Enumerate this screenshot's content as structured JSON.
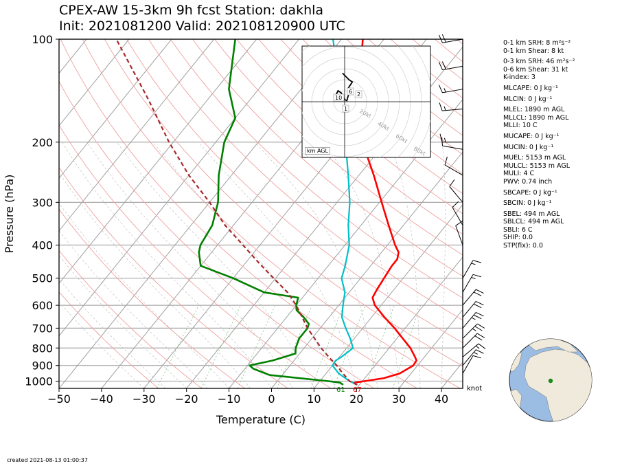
{
  "title": {
    "line1": "CPEX-AW 15-3km  9h fcst  Station: dakhla",
    "line2": "Init: 2021081200  Valid: 202108120900 UTC"
  },
  "chart_data": {
    "type": "skew-t",
    "xlabel": "Temperature (C)",
    "ylabel": "Pressure (hPa)",
    "xlim": [
      -50,
      45
    ],
    "ylim_pressure": [
      1050,
      100
    ],
    "x_ticks": [
      -50,
      -40,
      -30,
      -20,
      -10,
      0,
      10,
      20,
      30,
      40
    ],
    "y_ticks": [
      100,
      200,
      300,
      400,
      500,
      600,
      700,
      800,
      900,
      1000
    ],
    "surface_dewpoint_label": "61",
    "surface_temp_label": "67",
    "colors": {
      "temperature": "#ff0000",
      "dewpoint": "#008000",
      "virtual_temperature": "#00bfc8",
      "parcel": "#a52a2a",
      "isotherm": "#a0a0a0",
      "dry_adiabat": "#f0a0a0",
      "moist_adiabat": "#c0c0c0",
      "mixing_ratio": "#80c080"
    },
    "series": [
      {
        "key": "temperature",
        "points": [
          [
            1025,
            19.2
          ],
          [
            1010,
            18.5
          ],
          [
            1000,
            20.5
          ],
          [
            980,
            24.5
          ],
          [
            950,
            27.3
          ],
          [
            900,
            29
          ],
          [
            870,
            28.8
          ],
          [
            850,
            27.8
          ],
          [
            800,
            25
          ],
          [
            700,
            17.5
          ],
          [
            650,
            13
          ],
          [
            600,
            8.5
          ],
          [
            570,
            6.5
          ],
          [
            540,
            6
          ],
          [
            500,
            5.5
          ],
          [
            460,
            5
          ],
          [
            440,
            5
          ],
          [
            420,
            4
          ],
          [
            400,
            1.8
          ],
          [
            350,
            -3.5
          ],
          [
            300,
            -9.5
          ],
          [
            250,
            -16.5
          ],
          [
            200,
            -25.5
          ],
          [
            150,
            -34.5
          ],
          [
            100,
            -45
          ]
        ]
      },
      {
        "key": "dewpoint",
        "points": [
          [
            1025,
            16.2
          ],
          [
            1010,
            15
          ],
          [
            1000,
            12
          ],
          [
            960,
            -3
          ],
          [
            920,
            -8
          ],
          [
            900,
            -9.5
          ],
          [
            870,
            -5
          ],
          [
            830,
            -1
          ],
          [
            800,
            -2
          ],
          [
            750,
            -3
          ],
          [
            700,
            -3
          ],
          [
            680,
            -3.5
          ],
          [
            650,
            -6
          ],
          [
            620,
            -9
          ],
          [
            600,
            -10
          ],
          [
            570,
            -11
          ],
          [
            550,
            -20
          ],
          [
            500,
            -30
          ],
          [
            460,
            -40
          ],
          [
            420,
            -43
          ],
          [
            400,
            -44
          ],
          [
            350,
            -45
          ],
          [
            300,
            -48
          ],
          [
            250,
            -53
          ],
          [
            200,
            -58
          ],
          [
            170,
            -60
          ],
          [
            140,
            -67
          ],
          [
            100,
            -75
          ]
        ]
      },
      {
        "key": "virtual_temperature",
        "points": [
          [
            1025,
            19.5
          ],
          [
            1000,
            17
          ],
          [
            950,
            13
          ],
          [
            900,
            10
          ],
          [
            870,
            9.8
          ],
          [
            850,
            10.5
          ],
          [
            800,
            11.5
          ],
          [
            750,
            9
          ],
          [
            700,
            6
          ],
          [
            650,
            3
          ],
          [
            600,
            1
          ],
          [
            550,
            -1
          ],
          [
            500,
            -4.5
          ],
          [
            460,
            -6
          ],
          [
            400,
            -9
          ],
          [
            350,
            -13
          ],
          [
            300,
            -17
          ],
          [
            250,
            -22.5
          ],
          [
            200,
            -29.5
          ],
          [
            150,
            -39
          ],
          [
            120,
            -46
          ],
          [
            100,
            -52
          ]
        ]
      },
      {
        "key": "parcel",
        "points": [
          [
            1025,
            19.5
          ],
          [
            1000,
            17
          ],
          [
            950,
            14
          ],
          [
            900,
            11
          ],
          [
            850,
            7.5
          ],
          [
            800,
            4
          ],
          [
            700,
            -3
          ],
          [
            600,
            -10
          ],
          [
            550,
            -14.5
          ],
          [
            500,
            -20.5
          ],
          [
            450,
            -27
          ],
          [
            400,
            -34
          ],
          [
            350,
            -42
          ],
          [
            300,
            -50
          ],
          [
            250,
            -60
          ],
          [
            200,
            -71
          ],
          [
            150,
            -84
          ],
          [
            100,
            -103
          ]
        ]
      }
    ],
    "wind_barbs": [
      {
        "p": 100,
        "spd": 20,
        "dir": 260
      },
      {
        "p": 120,
        "spd": 20,
        "dir": 260
      },
      {
        "p": 140,
        "spd": 15,
        "dir": 260
      },
      {
        "p": 160,
        "spd": 15,
        "dir": 265
      },
      {
        "p": 200,
        "spd": 15,
        "dir": 270
      },
      {
        "p": 210,
        "spd": 10,
        "dir": 280
      },
      {
        "p": 250,
        "spd": 10,
        "dir": 300
      },
      {
        "p": 300,
        "spd": 10,
        "dir": 320
      },
      {
        "p": 350,
        "spd": 10,
        "dir": 330
      },
      {
        "p": 400,
        "spd": 10,
        "dir": 340
      },
      {
        "p": 500,
        "spd": 15,
        "dir": 30
      },
      {
        "p": 550,
        "spd": 15,
        "dir": 30
      },
      {
        "p": 600,
        "spd": 20,
        "dir": 40
      },
      {
        "p": 650,
        "spd": 20,
        "dir": 40
      },
      {
        "p": 700,
        "spd": 25,
        "dir": 40
      },
      {
        "p": 750,
        "spd": 25,
        "dir": 45
      },
      {
        "p": 800,
        "spd": 20,
        "dir": 45
      },
      {
        "p": 850,
        "spd": 15,
        "dir": 50
      },
      {
        "p": 900,
        "spd": 15,
        "dir": 40
      },
      {
        "p": 950,
        "spd": 10,
        "dir": 30
      }
    ],
    "hodograph": {
      "ring_labels": [
        "20kt",
        "40kt",
        "60kt",
        "80kt"
      ],
      "height_labels": [
        "10",
        "6",
        "2",
        "1"
      ],
      "units_label": "km AGL",
      "points": [
        [
          -4,
          4
        ],
        [
          -8,
          6
        ],
        [
          -6,
          10
        ],
        [
          -3,
          8
        ],
        [
          0,
          2
        ],
        [
          2,
          1
        ],
        [
          4,
          8
        ],
        [
          3,
          12
        ],
        [
          7,
          18
        ],
        [
          4,
          20
        ],
        [
          2,
          22
        ],
        [
          -2,
          26
        ]
      ]
    }
  },
  "indices": [
    "0-1 km SRH: 8 m²s⁻²",
    "0-1 km Shear: 8 kt",
    "0-3 km SRH: 46 m²s⁻²",
    "0-6 km Shear: 31 kt",
    "K-index: 3",
    "MLCAPE: 0 J kg⁻¹",
    "MLCIN: 0 J kg⁻¹",
    "MLEL: 1890 m AGL",
    "MLLCL: 1890 m AGL",
    "MLLI: 10 C",
    "MUCAPE: 0 J kg⁻¹",
    "MUCIN: 0 J kg⁻¹",
    "MUEL: 5153 m AGL",
    "MULCL: 5153 m AGL",
    "MULI: 4 C",
    "PWV: 0.74 inch",
    "SBCAPE: 0 J kg⁻¹",
    "SBCIN: 0 J kg⁻¹",
    "SBEL: 494 m AGL",
    "SBLCL: 494 m AGL",
    "SBLI: 6 C",
    "SHIP: 0.0",
    "STP(fix): 0.0"
  ],
  "barb_units": "knot",
  "created": "created 2021-08-13 01:00:37",
  "globe": {
    "station_lat": 23.7,
    "station_lon": -15.9
  }
}
